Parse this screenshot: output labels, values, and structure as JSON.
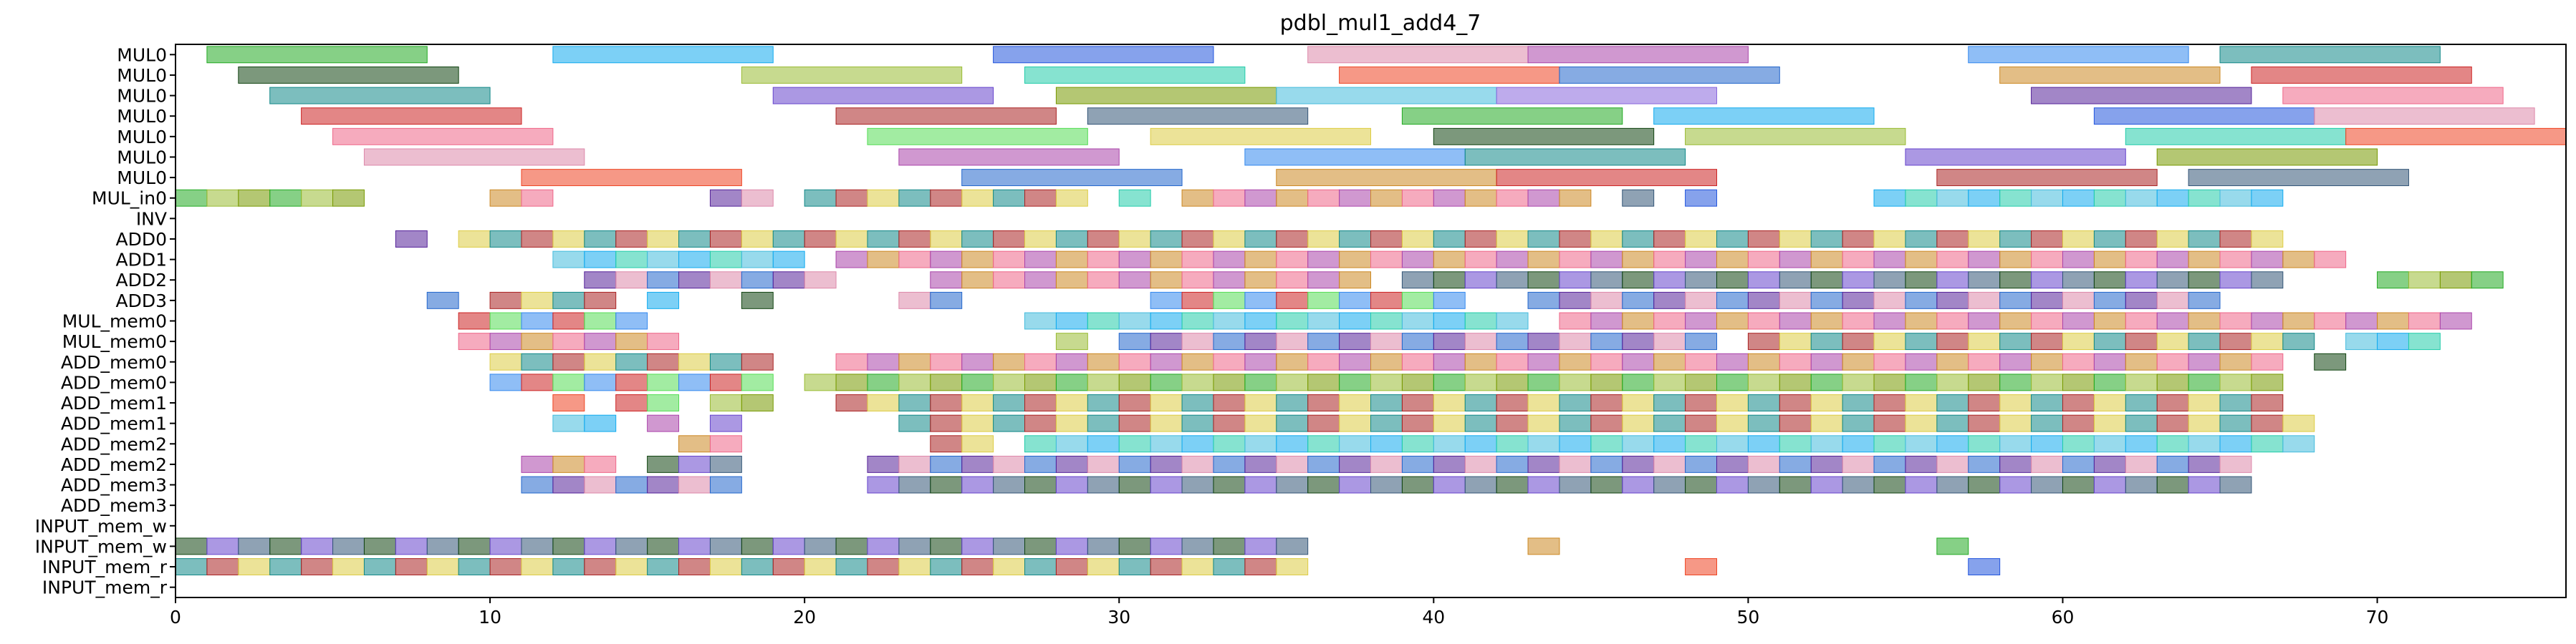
{
  "chart_data": {
    "type": "gantt",
    "title": "pdbl_mul1_add4_7",
    "xlabel": "",
    "ylabel": "",
    "xlim": [
      0,
      76
    ],
    "xticks": [
      0,
      10,
      20,
      30,
      40,
      50,
      60,
      70
    ],
    "grid": false,
    "legend": "none",
    "rows": [
      "MUL0",
      "MUL0",
      "MUL0",
      "MUL0",
      "MUL0",
      "MUL0",
      "MUL0",
      "MUL_in0",
      "INV",
      "ADD0",
      "ADD1",
      "ADD2",
      "ADD3",
      "MUL_mem0",
      "MUL_mem0",
      "ADD_mem0",
      "ADD_mem0",
      "ADD_mem1",
      "ADD_mem1",
      "ADD_mem2",
      "ADD_mem2",
      "ADD_mem3",
      "ADD_mem3",
      "INPUT_mem_w",
      "INPUT_mem_w",
      "INPUT_mem_r",
      "INPUT_mem_r"
    ],
    "palette": [
      "#22aa22",
      "#3388ee",
      "#8866dd",
      "#114411",
      "#cc8822",
      "#11aaee",
      "#118888",
      "#552299",
      "#99bb33",
      "#cc2222",
      "#2255dd",
      "#6644cc",
      "#ee6688",
      "#22ccaa",
      "#aa2222",
      "#dd88aa",
      "#779900",
      "#55dd55",
      "#ee4422",
      "#335577",
      "#aa44aa",
      "#44bbdd",
      "#ddcc44",
      "#2266cc"
    ],
    "long_tasks": [
      [
        [
          1,
          8
        ],
        [
          12,
          19
        ],
        [
          26,
          33
        ],
        [
          36,
          43
        ],
        [
          43,
          50
        ],
        [
          57,
          64
        ],
        [
          65,
          72
        ]
      ],
      [
        [
          2,
          9
        ],
        [
          18,
          25
        ],
        [
          27,
          34
        ],
        [
          37,
          44
        ],
        [
          44,
          51
        ],
        [
          58,
          65
        ],
        [
          66,
          73
        ]
      ],
      [
        [
          3,
          10
        ],
        [
          19,
          26
        ],
        [
          28,
          35
        ],
        [
          35,
          42
        ],
        [
          42,
          49
        ],
        [
          59,
          66
        ],
        [
          67,
          74
        ]
      ],
      [
        [
          4,
          11
        ],
        [
          21,
          28
        ],
        [
          29,
          36
        ],
        [
          39,
          46
        ],
        [
          47,
          54
        ],
        [
          61,
          68
        ],
        [
          68,
          75
        ]
      ],
      [
        [
          5,
          12
        ],
        [
          22,
          29
        ],
        [
          31,
          38
        ],
        [
          40,
          47
        ],
        [
          48,
          55
        ],
        [
          62,
          69
        ],
        [
          69,
          76
        ]
      ],
      [
        [
          6,
          13
        ],
        [
          23,
          30
        ],
        [
          34,
          41
        ],
        [
          41,
          48
        ],
        [
          55,
          62
        ],
        [
          63,
          70
        ]
      ],
      [
        [
          11,
          18
        ],
        [
          25,
          32
        ],
        [
          35,
          42
        ],
        [
          42,
          49
        ],
        [
          56,
          63
        ],
        [
          64,
          71
        ]
      ]
    ],
    "unit_tasks": [
      [
        0,
        1,
        2,
        3,
        4,
        5,
        10,
        11,
        17,
        18,
        20,
        21,
        22,
        23,
        24,
        25,
        26,
        27,
        28,
        30,
        32,
        33,
        34,
        35,
        36,
        37,
        38,
        39,
        40,
        41,
        42,
        43,
        44,
        46,
        48,
        54,
        55,
        56,
        57,
        58,
        59,
        60,
        61,
        62,
        63,
        64,
        65,
        66
      ],
      [],
      [
        7,
        9,
        10,
        11,
        12,
        13,
        14,
        15,
        16,
        17,
        18,
        19,
        20,
        21,
        22,
        23,
        24,
        25,
        26,
        27,
        28,
        29,
        30,
        31,
        32,
        33,
        34,
        35,
        36,
        37,
        38,
        39,
        40,
        41,
        42,
        43,
        44,
        45,
        46,
        47,
        48,
        49,
        50,
        51,
        52,
        53,
        54,
        55,
        56,
        57,
        58,
        59,
        60,
        61,
        62,
        63,
        64,
        65,
        66
      ],
      [
        12,
        13,
        14,
        15,
        16,
        17,
        18,
        19,
        21,
        22,
        23,
        24,
        25,
        26,
        27,
        28,
        29,
        30,
        31,
        32,
        33,
        34,
        35,
        36,
        37,
        38,
        39,
        40,
        41,
        42,
        43,
        44,
        45,
        46,
        47,
        48,
        49,
        50,
        51,
        52,
        53,
        54,
        55,
        56,
        57,
        58,
        59,
        60,
        61,
        62,
        63,
        64,
        65,
        66,
        67,
        68
      ],
      [
        13,
        14,
        15,
        16,
        17,
        18,
        19,
        20,
        24,
        25,
        26,
        27,
        28,
        29,
        30,
        31,
        32,
        33,
        34,
        35,
        36,
        37,
        39,
        40,
        41,
        42,
        43,
        44,
        45,
        46,
        47,
        48,
        49,
        50,
        51,
        52,
        53,
        54,
        55,
        56,
        57,
        58,
        59,
        60,
        61,
        62,
        63,
        64,
        65,
        66,
        70,
        71,
        72,
        73
      ],
      [
        8,
        10,
        11,
        12,
        13,
        15,
        18,
        23,
        24,
        31,
        32,
        33,
        34,
        35,
        36,
        37,
        38,
        39,
        40,
        43,
        44,
        45,
        46,
        47,
        48,
        49,
        50,
        51,
        52,
        53,
        54,
        55,
        56,
        57,
        58,
        59,
        60,
        61,
        62,
        63,
        64
      ],
      [
        9,
        10,
        11,
        12,
        13,
        14,
        27,
        28,
        29,
        30,
        31,
        32,
        33,
        34,
        35,
        36,
        37,
        38,
        39,
        40,
        41,
        42,
        44,
        45,
        46,
        47,
        48,
        49,
        50,
        51,
        52,
        53,
        54,
        55,
        56,
        57,
        58,
        59,
        60,
        61,
        62,
        63,
        64,
        65,
        66,
        67,
        68,
        69,
        70,
        71,
        72
      ],
      [
        9,
        10,
        11,
        12,
        13,
        14,
        15,
        28,
        30,
        31,
        32,
        33,
        34,
        35,
        36,
        37,
        38,
        39,
        40,
        41,
        42,
        43,
        44,
        45,
        46,
        47,
        48,
        50,
        51,
        52,
        53,
        54,
        55,
        56,
        57,
        58,
        59,
        60,
        61,
        62,
        63,
        64,
        65,
        66,
        67,
        69,
        70,
        71
      ],
      [
        10,
        11,
        12,
        13,
        14,
        15,
        16,
        17,
        18,
        21,
        22,
        23,
        24,
        25,
        26,
        27,
        28,
        29,
        30,
        31,
        32,
        33,
        34,
        35,
        36,
        37,
        38,
        39,
        40,
        41,
        42,
        43,
        44,
        45,
        46,
        47,
        48,
        49,
        50,
        51,
        52,
        53,
        54,
        55,
        56,
        57,
        58,
        59,
        60,
        61,
        62,
        63,
        64,
        65,
        66,
        68
      ],
      [
        10,
        11,
        12,
        13,
        14,
        15,
        16,
        17,
        18,
        20,
        21,
        22,
        23,
        24,
        25,
        26,
        27,
        28,
        29,
        30,
        31,
        32,
        33,
        34,
        35,
        36,
        37,
        38,
        39,
        40,
        41,
        42,
        43,
        44,
        45,
        46,
        47,
        48,
        49,
        50,
        51,
        52,
        53,
        54,
        55,
        56,
        57,
        58,
        59,
        60,
        61,
        62,
        63,
        64,
        65,
        66
      ],
      [
        12,
        14,
        15,
        17,
        18,
        21,
        22,
        23,
        24,
        25,
        26,
        27,
        28,
        29,
        30,
        31,
        32,
        33,
        34,
        35,
        36,
        37,
        38,
        39,
        40,
        41,
        42,
        43,
        44,
        45,
        46,
        47,
        48,
        49,
        50,
        51,
        52,
        53,
        54,
        55,
        56,
        57,
        58,
        59,
        60,
        61,
        62,
        63,
        64,
        65,
        66
      ],
      [
        12,
        13,
        15,
        17,
        23,
        24,
        25,
        26,
        27,
        28,
        29,
        30,
        31,
        32,
        33,
        34,
        35,
        36,
        37,
        38,
        39,
        40,
        41,
        42,
        43,
        44,
        45,
        46,
        47,
        48,
        49,
        50,
        51,
        52,
        53,
        54,
        55,
        56,
        57,
        58,
        59,
        60,
        61,
        62,
        63,
        64,
        65,
        66,
        67
      ],
      [
        16,
        17,
        24,
        25,
        27,
        28,
        29,
        30,
        31,
        32,
        33,
        34,
        35,
        36,
        37,
        38,
        39,
        40,
        41,
        42,
        43,
        44,
        45,
        46,
        47,
        48,
        49,
        50,
        51,
        52,
        53,
        54,
        55,
        56,
        57,
        58,
        59,
        60,
        61,
        62,
        63,
        64,
        65,
        66,
        67
      ],
      [
        11,
        12,
        13,
        15,
        16,
        17,
        22,
        23,
        24,
        25,
        26,
        27,
        28,
        29,
        30,
        31,
        32,
        33,
        34,
        35,
        36,
        37,
        38,
        39,
        40,
        41,
        42,
        43,
        44,
        45,
        46,
        47,
        48,
        49,
        50,
        51,
        52,
        53,
        54,
        55,
        56,
        57,
        58,
        59,
        60,
        61,
        62,
        63,
        64,
        65
      ],
      [
        11,
        12,
        13,
        14,
        15,
        16,
        17,
        22,
        23,
        24,
        25,
        26,
        27,
        28,
        29,
        30,
        31,
        32,
        33,
        34,
        35,
        36,
        37,
        38,
        39,
        40,
        41,
        42,
        43,
        44,
        45,
        46,
        47,
        48,
        49,
        50,
        51,
        52,
        53,
        54,
        55,
        56,
        57,
        58,
        59,
        60,
        61,
        62,
        63,
        64,
        65
      ],
      [],
      [],
      [
        0,
        1,
        2,
        3,
        4,
        5,
        6,
        7,
        8,
        9,
        10,
        11,
        12,
        13,
        14,
        15,
        16,
        17,
        18,
        19,
        20,
        21,
        22,
        23,
        24,
        25,
        26,
        27,
        28,
        29,
        30,
        31,
        32,
        33,
        34,
        35,
        43,
        56
      ],
      [
        0,
        1,
        2,
        3,
        4,
        5,
        6,
        7,
        8,
        9,
        10,
        11,
        12,
        13,
        14,
        15,
        16,
        17,
        18,
        19,
        20,
        21,
        22,
        23,
        24,
        25,
        26,
        27,
        28,
        29,
        30,
        31,
        32,
        33,
        34,
        35,
        48,
        57
      ]
    ],
    "unit_rows": [
      7,
      8,
      9,
      10,
      11,
      12,
      13,
      14,
      15,
      16,
      17,
      18,
      19,
      20,
      21,
      22,
      23,
      24,
      25,
      26,
      27,
      28,
      29,
      23,
      24,
      25,
      26
    ]
  }
}
